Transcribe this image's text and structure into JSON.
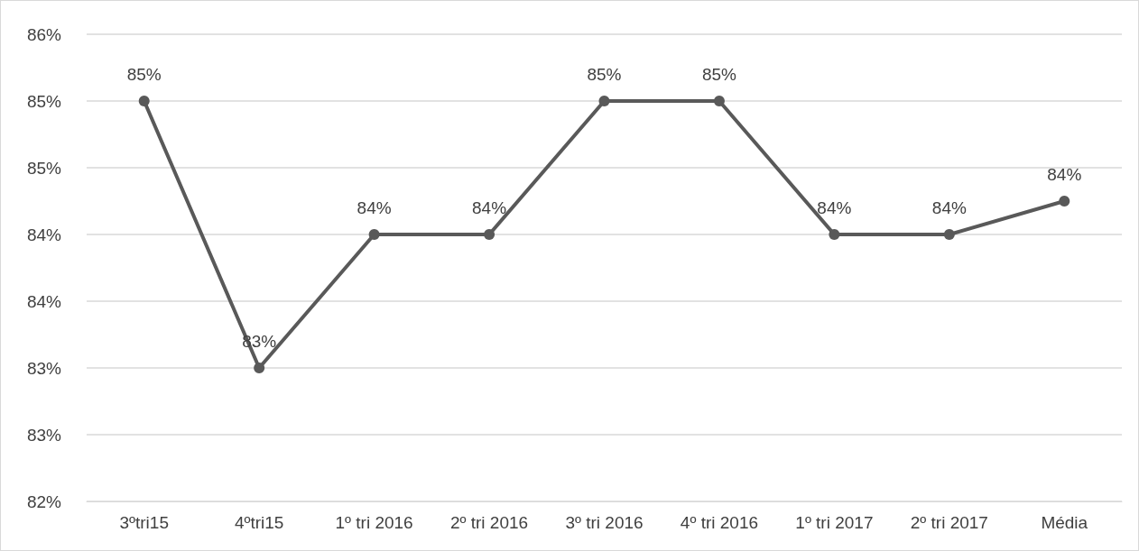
{
  "chart_data": {
    "type": "line",
    "categories": [
      "3ºtri15",
      "4ºtri15",
      "1º tri 2016",
      "2º tri 2016",
      "3º tri 2016",
      "4º tri 2016",
      "1º tri 2017",
      "2º tri 2017",
      "Média"
    ],
    "series": [
      {
        "color": "#595959",
        "values": [
          85.0,
          83.0,
          84.0,
          84.0,
          85.0,
          85.0,
          84.0,
          84.0,
          84.25
        ],
        "value_labels": [
          "85%",
          "83%",
          "84%",
          "84%",
          "85%",
          "85%",
          "84%",
          "84%",
          "84%"
        ]
      }
    ],
    "ylim": [
      82.0,
      85.5
    ],
    "yticks": [
      {
        "value": 82.0,
        "label": "82%"
      },
      {
        "value": 82.5,
        "label": "83%"
      },
      {
        "value": 83.0,
        "label": "83%"
      },
      {
        "value": 83.5,
        "label": "84%"
      },
      {
        "value": 84.0,
        "label": "84%"
      },
      {
        "value": 84.5,
        "label": "85%"
      },
      {
        "value": 85.0,
        "label": "85%"
      },
      {
        "value": 85.5,
        "label": "86%"
      }
    ],
    "grid": "y",
    "marker": "circle",
    "line_style": "solid"
  }
}
